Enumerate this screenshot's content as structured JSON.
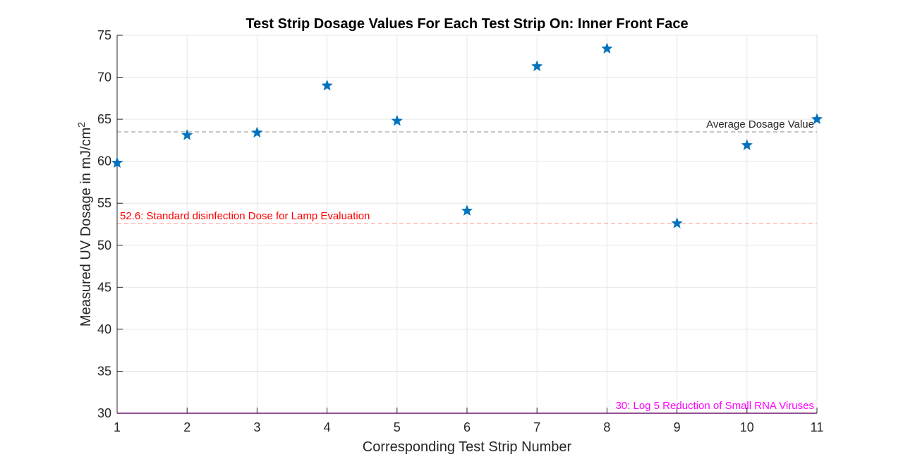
{
  "chart_data": {
    "type": "scatter",
    "title": "Test Strip Dosage Values For Each Test Strip On: Inner Front Face",
    "xlabel": "Corresponding Test Strip Number",
    "ylabel": {
      "text": "Measured UV Dosage in mJ/cm",
      "superscript": "2"
    },
    "xlim": [
      1,
      11
    ],
    "ylim": [
      30,
      75
    ],
    "xticks": [
      1,
      2,
      3,
      4,
      5,
      6,
      7,
      8,
      9,
      10,
      11
    ],
    "yticks": [
      30,
      35,
      40,
      45,
      50,
      55,
      60,
      65,
      70,
      75
    ],
    "grid": true,
    "marker": "star",
    "series": [
      {
        "x": [
          1,
          2,
          3,
          4,
          5,
          6,
          7,
          8,
          9,
          10,
          11
        ],
        "y": [
          59.8,
          63.1,
          63.4,
          69.0,
          64.8,
          54.1,
          71.3,
          73.4,
          52.6,
          61.9,
          65.0
        ]
      }
    ],
    "reference_lines": [
      {
        "y": 63.5,
        "label": "Average Dosage Value",
        "color": "#8c8c8c",
        "text_color": "#262626",
        "label_position": "right"
      },
      {
        "y": 52.6,
        "label": "52.6: Standard disinfection Dose for Lamp Evaluation",
        "color": "#ff9999",
        "text_color": "#ff0000",
        "label_position": "left"
      },
      {
        "y": 30,
        "label": "30: Log 5 Reduction of Small RNA Viruses",
        "color": "#ff00ff",
        "text_color": "#ff00ff",
        "label_position": "right"
      }
    ]
  },
  "colors": {
    "marker": "#0072bd",
    "grid": "#e6e6e6",
    "axis": "#262626"
  }
}
